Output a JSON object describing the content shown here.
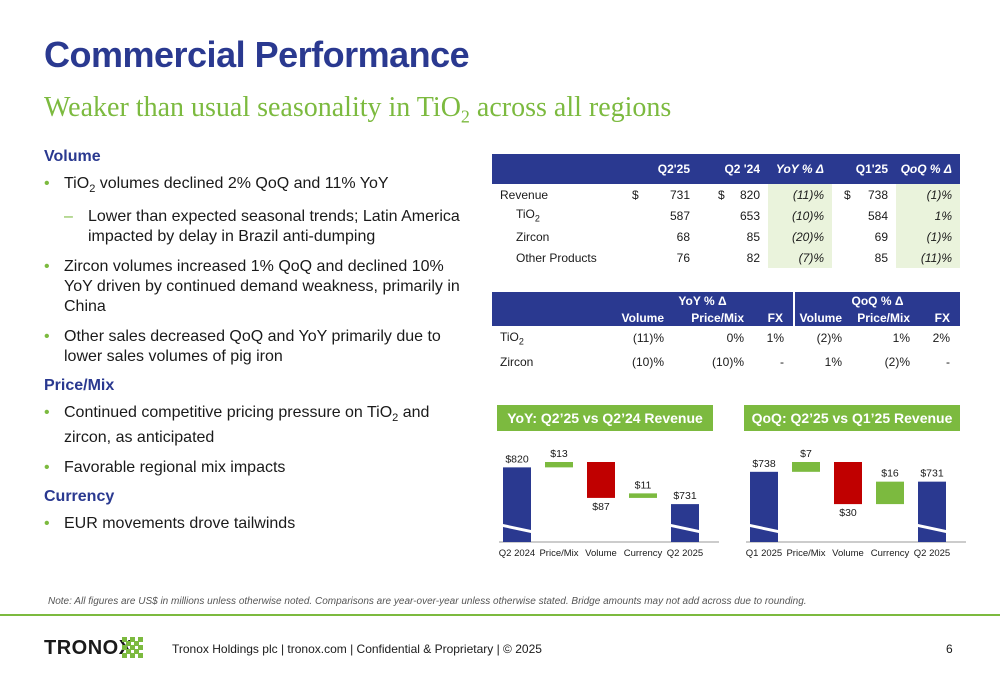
{
  "title": "Commercial Performance",
  "subtitle": {
    "pre": "Weaker than usual seasonality in TiO",
    "sub": "2",
    "post": " across all regions"
  },
  "sections": {
    "volume": {
      "heading": "Volume",
      "b1": {
        "pre": "TiO",
        "sub": "2",
        "post": " volumes declined 2% QoQ and 11% YoY"
      },
      "b1_sub": "Lower than expected seasonal trends; Latin America impacted by delay in Brazil anti-dumping",
      "b2": "Zircon volumes increased 1% QoQ and declined 10% YoY driven by continued demand weakness, primarily in China",
      "b3": "Other sales decreased QoQ and YoY primarily due to lower sales volumes of pig iron"
    },
    "price": {
      "heading": "Price/Mix",
      "b1": {
        "pre": "Continued competitive pricing pressure on TiO",
        "sub": "2",
        "post": " and zircon, as anticipated"
      },
      "b2": "Favorable regional mix impacts"
    },
    "currency": {
      "heading": "Currency",
      "b1": "EUR movements drove tailwinds"
    }
  },
  "table1": {
    "headers": [
      "Q2'25",
      "Q2 '24",
      "YoY % Δ",
      "Q1'25",
      "QoQ % Δ"
    ],
    "rows": [
      {
        "label": "Revenue",
        "sub": "",
        "c1": "731",
        "c2": "820",
        "yoy": "(11)%",
        "c4": "738",
        "qoq": "(1)%",
        "currency": "$"
      },
      {
        "label": "TiO",
        "sub": "2",
        "c1": "587",
        "c2": "653",
        "yoy": "(10)%",
        "c4": "584",
        "qoq": "1%",
        "currency": ""
      },
      {
        "label": "Zircon",
        "sub": "",
        "c1": "68",
        "c2": "85",
        "yoy": "(20)%",
        "c4": "69",
        "qoq": "(1)%",
        "currency": ""
      },
      {
        "label": "Other Products",
        "sub": "",
        "c1": "76",
        "c2": "82",
        "yoy": "(7)%",
        "c4": "85",
        "qoq": "(11)%",
        "currency": ""
      }
    ]
  },
  "table2": {
    "group1": "YoY % Δ",
    "group2": "QoQ % Δ",
    "cols": [
      "Volume",
      "Price/Mix",
      "FX",
      "Volume",
      "Price/Mix",
      "FX"
    ],
    "rows": [
      {
        "label": "TiO",
        "sub": "2",
        "v": [
          "(11)%",
          "0%",
          "1%",
          "(2)%",
          "1%",
          "2%"
        ]
      },
      {
        "label": "Zircon",
        "sub": "",
        "v": [
          "(10)%",
          "(10)%",
          "-",
          "1%",
          "(2)%",
          "-"
        ]
      }
    ]
  },
  "chart_data": [
    {
      "type": "bar",
      "title": "YoY: Q2’25 vs Q2’24 Revenue",
      "categories": [
        "Q2 2024",
        "Price/Mix",
        "Volume",
        "Currency",
        "Q2 2025"
      ],
      "values": [
        820,
        13,
        -87,
        11,
        731
      ],
      "labels": [
        "$820",
        "$13",
        "$87",
        "$11",
        "$731"
      ],
      "colors": {
        "total": "#2a3990",
        "negative": "#c00000",
        "positive": "#7cba3f"
      }
    },
    {
      "type": "bar",
      "title": "QoQ: Q2’25 vs Q1’25 Revenue",
      "categories": [
        "Q1 2025",
        "Price/Mix",
        "Volume",
        "Currency",
        "Q2 2025"
      ],
      "values": [
        738,
        7,
        -30,
        16,
        731
      ],
      "labels": [
        "$738",
        "$7",
        "$30",
        "$16",
        "$731"
      ],
      "colors": {
        "total": "#2a3990",
        "negative": "#c00000",
        "positive": "#7cba3f"
      }
    }
  ],
  "note": "Note: All figures are US$ in millions unless otherwise noted. Comparisons are year-over-year unless otherwise stated. Bridge amounts may not add across due to rounding.",
  "footer": {
    "logo": "TRONOX",
    "text": "Tronox Holdings plc  |  tronox.com  |  Confidential & Proprietary  |  © 2025",
    "page": "6"
  },
  "colors": {
    "brand_blue": "#2a3990",
    "brand_green": "#7cba3f",
    "highlight": "#eaf3dc"
  }
}
